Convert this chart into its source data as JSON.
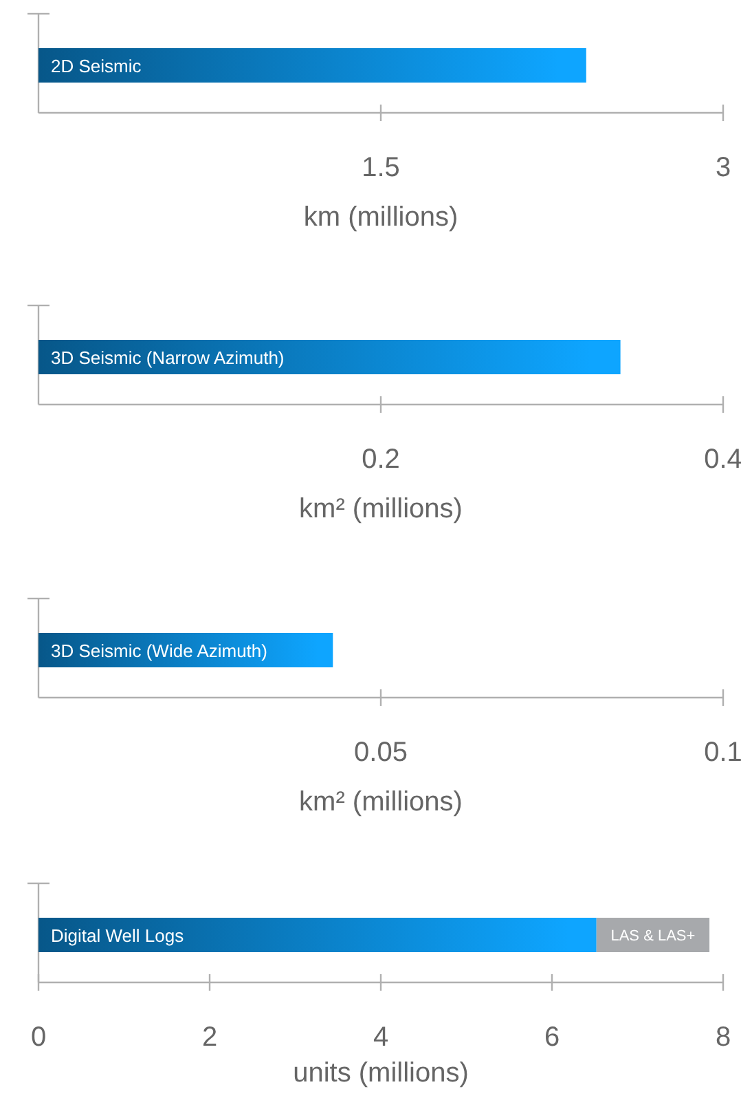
{
  "chart_data": [
    {
      "type": "bar",
      "orientation": "horizontal",
      "categories": [
        "2D Seismic"
      ],
      "series": [
        {
          "color": "#0a78bd",
          "values": [
            2.4
          ]
        }
      ],
      "xlim": [
        0,
        3
      ],
      "xticks": [
        1.5,
        3
      ],
      "xlabel": "km (millions)",
      "grid": false
    },
    {
      "type": "bar",
      "orientation": "horizontal",
      "categories": [
        "3D Seismic (Narrow Azimuth)"
      ],
      "series": [
        {
          "color": "#0a78bd",
          "values": [
            0.34
          ]
        }
      ],
      "xlim": [
        0,
        0.4
      ],
      "xticks": [
        0.2,
        0.4
      ],
      "xlabel": "km² (millions)",
      "grid": false
    },
    {
      "type": "bar",
      "orientation": "horizontal",
      "categories": [
        "3D Seismic (Wide Azimuth)"
      ],
      "series": [
        {
          "color": "#0a78bd",
          "values": [
            0.043
          ]
        }
      ],
      "xlim": [
        0,
        0.1
      ],
      "xticks": [
        0.05,
        0.1
      ],
      "xlabel": "km² (millions)",
      "grid": false
    },
    {
      "type": "bar",
      "orientation": "horizontal",
      "stacked": true,
      "categories": [
        "Digital Well Logs"
      ],
      "series": [
        {
          "color": "#0a78bd",
          "values": [
            6.52
          ]
        },
        {
          "name": "LAS & LAS+",
          "color": "#a7a9ac",
          "values": [
            1.32
          ]
        }
      ],
      "xlim": [
        0,
        8
      ],
      "xticks": [
        0,
        2,
        4,
        6,
        8
      ],
      "xlabel": "units (millions)",
      "grid": false
    }
  ]
}
